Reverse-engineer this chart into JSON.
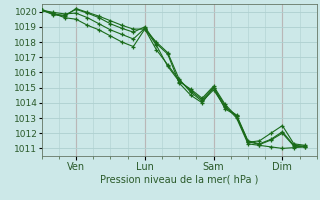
{
  "title": "",
  "xlabel": "Pression niveau de la mer( hPa )",
  "ylabel": "",
  "bg_color": "#cce8e8",
  "grid_color": "#aed0d0",
  "line_color": "#1a6b1a",
  "tick_label_color": "#2a5a2a",
  "vline_color": "#c89898",
  "ylim": [
    1010.5,
    1020.5
  ],
  "xlim": [
    0,
    96
  ],
  "yticks": [
    1011,
    1012,
    1013,
    1014,
    1015,
    1016,
    1017,
    1018,
    1019,
    1020
  ],
  "xtick_positions": [
    12,
    36,
    60,
    84
  ],
  "xtick_labels": [
    "Ven",
    "Lun",
    "Sam",
    "Dim"
  ],
  "series": [
    [
      0,
      1020.1,
      4,
      1019.9,
      8,
      1019.6,
      12,
      1019.5,
      16,
      1019.1,
      20,
      1018.8,
      24,
      1018.4,
      28,
      1018.0,
      32,
      1017.7,
      36,
      1018.85,
      40,
      1017.5,
      44,
      1016.5,
      48,
      1015.5,
      52,
      1014.8,
      56,
      1014.2,
      60,
      1015.0,
      64,
      1013.8,
      68,
      1013.0,
      72,
      1011.3,
      76,
      1011.2,
      80,
      1011.1,
      84,
      1011.0,
      88,
      1011.05,
      92,
      1011.1
    ],
    [
      0,
      1020.1,
      4,
      1019.95,
      8,
      1019.85,
      12,
      1019.9,
      16,
      1019.6,
      20,
      1019.2,
      24,
      1018.8,
      28,
      1018.5,
      32,
      1018.2,
      36,
      1018.9,
      40,
      1017.8,
      44,
      1016.4,
      48,
      1015.4,
      52,
      1014.9,
      56,
      1014.3,
      60,
      1015.1,
      64,
      1013.9,
      68,
      1013.1,
      72,
      1011.4,
      76,
      1011.5,
      80,
      1012.0,
      84,
      1012.5,
      88,
      1011.3,
      92,
      1011.2
    ],
    [
      0,
      1020.1,
      4,
      1019.8,
      8,
      1019.7,
      12,
      1020.2,
      16,
      1019.95,
      20,
      1019.7,
      24,
      1019.4,
      28,
      1019.1,
      32,
      1018.85,
      36,
      1018.85,
      40,
      1018.0,
      44,
      1017.3,
      48,
      1015.55,
      52,
      1014.7,
      56,
      1014.1,
      60,
      1014.85,
      64,
      1013.7,
      68,
      1013.2,
      72,
      1011.5,
      76,
      1011.3,
      80,
      1011.6,
      84,
      1012.1,
      88,
      1011.2,
      92,
      1011.15
    ],
    [
      0,
      1020.1,
      4,
      1019.85,
      8,
      1019.75,
      12,
      1020.15,
      16,
      1019.9,
      20,
      1019.6,
      24,
      1019.2,
      28,
      1018.9,
      32,
      1018.65,
      36,
      1019.0,
      40,
      1017.9,
      44,
      1017.2,
      48,
      1015.3,
      52,
      1014.5,
      56,
      1014.0,
      60,
      1015.0,
      64,
      1013.6,
      68,
      1013.15,
      72,
      1011.45,
      76,
      1011.25,
      80,
      1011.55,
      84,
      1012.0,
      88,
      1011.15,
      92,
      1011.1
    ]
  ]
}
